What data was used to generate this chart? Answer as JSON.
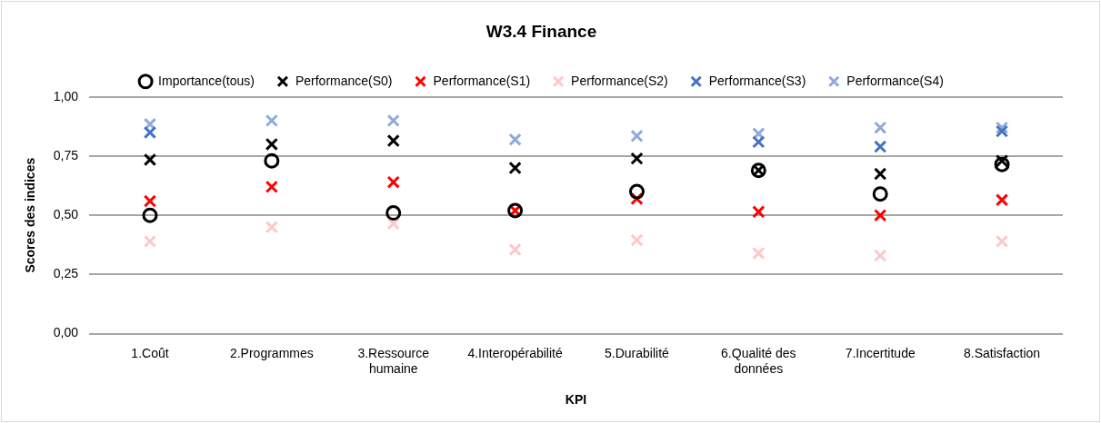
{
  "chart_data": {
    "type": "scatter",
    "title": "W3.4 Finance",
    "xlabel": "KPI",
    "ylabel": "Scores des indices",
    "categories": [
      "1.Coût",
      "2.Programmes",
      "3.Ressource humaine",
      "4.Interopérabilité",
      "5.Durabilité",
      "6.Qualité des données",
      "7.Incertitude",
      "8.Satisfaction"
    ],
    "series": [
      {
        "name": "Importance(tous)",
        "color": "#000000",
        "marker": "circle",
        "values": [
          0.5,
          0.73,
          0.51,
          0.52,
          0.6,
          0.69,
          0.59,
          0.715
        ]
      },
      {
        "name": "Performance(S0)",
        "color": "#000000",
        "marker": "cross",
        "values": [
          0.735,
          0.8,
          0.815,
          0.7,
          0.74,
          0.69,
          0.675,
          0.73
        ]
      },
      {
        "name": "Performance(S1)",
        "color": "#ff0000",
        "marker": "cross",
        "values": [
          0.56,
          0.62,
          0.64,
          0.52,
          0.57,
          0.515,
          0.5,
          0.565
        ]
      },
      {
        "name": "Performance(S2)",
        "color": "#ffc7c7",
        "marker": "cross",
        "values": [
          0.39,
          0.45,
          0.465,
          0.355,
          0.395,
          0.34,
          0.33,
          0.39
        ]
      },
      {
        "name": "Performance(S3)",
        "color": "#4472c4",
        "marker": "cross",
        "values": [
          0.85,
          null,
          null,
          null,
          null,
          0.81,
          0.79,
          0.855
        ]
      },
      {
        "name": "Performance(S4)",
        "color": "#8faadc",
        "marker": "cross",
        "values": [
          0.885,
          0.9,
          0.9,
          0.82,
          0.835,
          0.845,
          0.87,
          0.87
        ]
      }
    ],
    "ylim": [
      0,
      1
    ],
    "yticks": [
      {
        "value": 0,
        "label": "0,00"
      },
      {
        "value": 0.25,
        "label": "0,25"
      },
      {
        "value": 0.5,
        "label": "0,50"
      },
      {
        "value": 0.75,
        "label": "0,75"
      },
      {
        "value": 1,
        "label": "1,00"
      }
    ],
    "grid": "y",
    "legend": "top"
  }
}
